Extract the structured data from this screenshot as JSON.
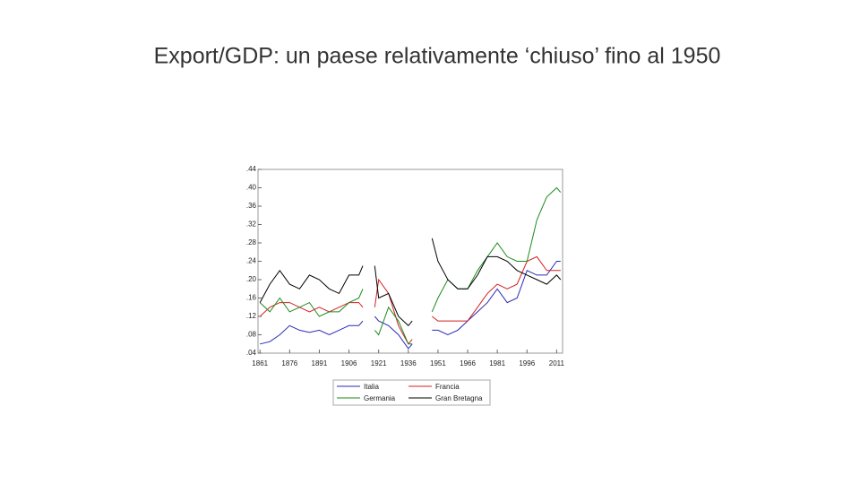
{
  "chart_data": {
    "type": "line",
    "title": "Export/GDP: un paese relativamente ‘chiuso’ fino al 1950",
    "x": [
      1861,
      1866,
      1871,
      1876,
      1881,
      1886,
      1891,
      1896,
      1901,
      1906,
      1911,
      1913,
      1916,
      1919,
      1921,
      1926,
      1931,
      1936,
      1938,
      1943,
      1948,
      1951,
      1956,
      1961,
      1966,
      1971,
      1976,
      1981,
      1986,
      1991,
      1996,
      2001,
      2006,
      2011,
      2013
    ],
    "series": [
      {
        "name": "Italia",
        "color": "#2a2ab8",
        "values": [
          0.06,
          0.065,
          0.08,
          0.1,
          0.09,
          0.085,
          0.09,
          0.08,
          0.09,
          0.1,
          0.1,
          0.11,
          null,
          0.12,
          0.11,
          0.1,
          0.08,
          0.05,
          0.06,
          null,
          0.09,
          0.09,
          0.08,
          0.09,
          0.11,
          0.13,
          0.15,
          0.18,
          0.15,
          0.16,
          0.22,
          0.21,
          0.21,
          0.24,
          0.24
        ]
      },
      {
        "name": "Francia",
        "color": "#d42020",
        "values": [
          0.12,
          0.14,
          0.15,
          0.15,
          0.14,
          0.13,
          0.14,
          0.13,
          0.14,
          0.15,
          0.15,
          0.14,
          null,
          0.14,
          0.2,
          0.17,
          0.1,
          0.06,
          0.07,
          null,
          0.12,
          0.11,
          0.11,
          0.11,
          0.11,
          0.14,
          0.17,
          0.19,
          0.18,
          0.19,
          0.24,
          0.25,
          0.22,
          0.22,
          0.22
        ]
      },
      {
        "name": "Germania",
        "color": "#1e8a1e",
        "values": [
          0.15,
          0.13,
          0.16,
          0.13,
          0.14,
          0.15,
          0.12,
          0.13,
          0.13,
          0.15,
          0.16,
          0.18,
          null,
          0.09,
          0.08,
          0.14,
          0.11,
          0.06,
          0.06,
          null,
          0.13,
          0.16,
          0.2,
          0.18,
          0.18,
          0.22,
          0.25,
          0.28,
          0.25,
          0.24,
          0.24,
          0.33,
          0.38,
          0.4,
          0.39
        ]
      },
      {
        "name": "Gran Bretagna",
        "color": "#000000",
        "values": [
          0.15,
          0.19,
          0.22,
          0.19,
          0.18,
          0.21,
          0.2,
          0.18,
          0.17,
          0.21,
          0.21,
          0.23,
          null,
          0.23,
          0.16,
          0.17,
          0.12,
          0.1,
          0.11,
          null,
          0.29,
          0.24,
          0.2,
          0.18,
          0.18,
          0.21,
          0.25,
          0.25,
          0.24,
          0.22,
          0.21,
          0.2,
          0.19,
          0.21,
          0.2
        ]
      }
    ],
    "xlim": [
      1860,
      2014
    ],
    "xticks": [
      1861,
      1876,
      1891,
      1906,
      1921,
      1936,
      1951,
      1966,
      1981,
      1996,
      2011
    ],
    "ylim": [
      0.04,
      0.44
    ],
    "yticks": [
      {
        "value": 0.04,
        "label": ".04"
      },
      {
        "value": 0.08,
        "label": ".08"
      },
      {
        "value": 0.12,
        "label": ".12"
      },
      {
        "value": 0.16,
        "label": ".16"
      },
      {
        "value": 0.2,
        "label": ".20"
      },
      {
        "value": 0.24,
        "label": ".24"
      },
      {
        "value": 0.28,
        "label": ".28"
      },
      {
        "value": 0.32,
        "label": ".32"
      },
      {
        "value": 0.36,
        "label": ".36"
      },
      {
        "value": 0.4,
        "label": ".40"
      },
      {
        "value": 0.44,
        "label": ".44"
      }
    ],
    "legend": "bottom"
  }
}
